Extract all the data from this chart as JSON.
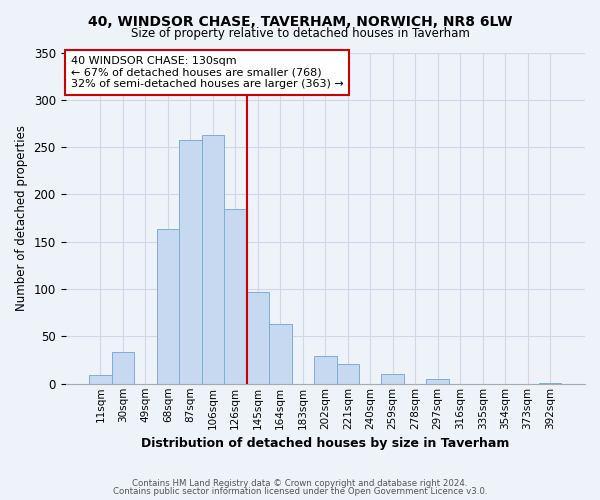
{
  "title1": "40, WINDSOR CHASE, TAVERHAM, NORWICH, NR8 6LW",
  "title2": "Size of property relative to detached houses in Taverham",
  "xlabel": "Distribution of detached houses by size in Taverham",
  "ylabel": "Number of detached properties",
  "bar_labels": [
    "11sqm",
    "30sqm",
    "49sqm",
    "68sqm",
    "87sqm",
    "106sqm",
    "126sqm",
    "145sqm",
    "164sqm",
    "183sqm",
    "202sqm",
    "221sqm",
    "240sqm",
    "259sqm",
    "278sqm",
    "297sqm",
    "316sqm",
    "335sqm",
    "354sqm",
    "373sqm",
    "392sqm"
  ],
  "bar_values": [
    9,
    34,
    0,
    163,
    258,
    263,
    185,
    97,
    63,
    0,
    29,
    21,
    0,
    10,
    0,
    5,
    0,
    0,
    0,
    0,
    1
  ],
  "bar_color": "#c6d9f0",
  "bar_edge_color": "#7bafd4",
  "vline_index": 6,
  "vline_color": "#cc0000",
  "annotation_line1": "40 WINDSOR CHASE: 130sqm",
  "annotation_line2": "← 67% of detached houses are smaller (768)",
  "annotation_line3": "32% of semi-detached houses are larger (363) →",
  "annotation_box_color": "#ffffff",
  "annotation_box_edge": "#cc0000",
  "footnote1": "Contains HM Land Registry data © Crown copyright and database right 2024.",
  "footnote2": "Contains public sector information licensed under the Open Government Licence v3.0.",
  "ylim": [
    0,
    350
  ],
  "background_color": "#eef2f9"
}
